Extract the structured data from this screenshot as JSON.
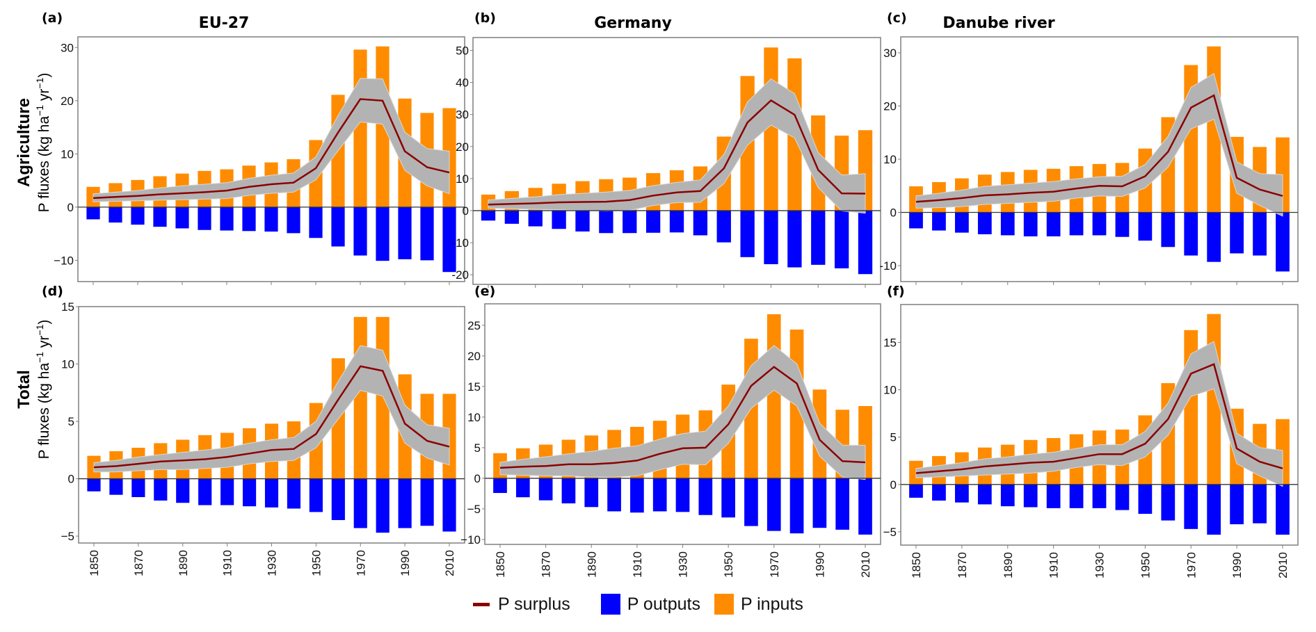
{
  "figure": {
    "columns": [
      "EU-27",
      "Germany",
      "Danube river"
    ],
    "rows": [
      {
        "title": "Agriculture",
        "ylabel_main": "P fluxes (kg ha",
        "ylabel_sup1": "−1",
        "ylabel_mid": " yr",
        "ylabel_sup2": "−1",
        "ylabel_end": ")"
      },
      {
        "title": "Total",
        "ylabel_main": "P fluxes (kg ha",
        "ylabel_sup1": "−1",
        "ylabel_mid": " yr",
        "ylabel_sup2": "−1",
        "ylabel_end": ")"
      }
    ],
    "colors": {
      "inputs": "#ff8c00",
      "outputs": "#0000ff",
      "surplus": "#8b0000",
      "band": "#b3b3b3"
    }
  },
  "legend": {
    "items": [
      {
        "label": "P surplus",
        "kind": "line",
        "color": "#8b0000"
      },
      {
        "label": "P outputs",
        "kind": "box",
        "color": "#0000ff"
      },
      {
        "label": "P inputs",
        "kind": "box",
        "color": "#ff8c00"
      }
    ]
  },
  "chart_data": [
    {
      "panel": "(a)",
      "title": "EU-27",
      "row": "Agriculture",
      "type": "bar",
      "x": [
        1850,
        1860,
        1870,
        1880,
        1890,
        1900,
        1910,
        1920,
        1930,
        1940,
        1950,
        1960,
        1970,
        1980,
        1990,
        2000,
        2010
      ],
      "xticks": [
        1850,
        1870,
        1890,
        1910,
        1930,
        1950,
        1970,
        1990,
        2010
      ],
      "ylim": [
        -14,
        32
      ],
      "yticks": [
        -10,
        0,
        10,
        20,
        30
      ],
      "ytick_labels": [
        "−10",
        "0",
        "10",
        "20",
        "30"
      ],
      "series": [
        {
          "name": "P inputs",
          "values": [
            3.8,
            4.5,
            5.1,
            5.8,
            6.3,
            6.8,
            7.1,
            7.8,
            8.4,
            9.0,
            12.6,
            21.1,
            29.6,
            30.2,
            20.4,
            17.7,
            18.6
          ]
        },
        {
          "name": "P outputs",
          "values": [
            -2.3,
            -2.9,
            -3.3,
            -3.7,
            -4.0,
            -4.3,
            -4.4,
            -4.5,
            -4.6,
            -4.9,
            -5.8,
            -7.4,
            -9.1,
            -10.1,
            -9.8,
            -10.0,
            -12.2
          ]
        },
        {
          "name": "P surplus",
          "values": [
            1.7,
            1.9,
            2.1,
            2.4,
            2.6,
            2.8,
            3.1,
            3.8,
            4.3,
            4.6,
            7.3,
            14.0,
            20.3,
            20.0,
            10.5,
            7.5,
            6.5
          ]
        },
        {
          "name": "P surplus lower",
          "values": [
            1.0,
            1.1,
            1.2,
            1.3,
            1.4,
            1.5,
            1.6,
            2.2,
            2.6,
            2.8,
            5.1,
            10.6,
            16.0,
            15.6,
            6.9,
            4.0,
            2.5
          ]
        },
        {
          "name": "P surplus upper",
          "values": [
            2.5,
            2.8,
            3.1,
            3.6,
            4.0,
            4.3,
            4.6,
            5.4,
            6.0,
            6.4,
            9.4,
            17.2,
            24.2,
            24.1,
            14.1,
            11.0,
            10.5
          ]
        }
      ]
    },
    {
      "panel": "(b)",
      "title": "Germany",
      "row": "Agriculture",
      "type": "bar",
      "x": [
        1850,
        1860,
        1870,
        1880,
        1890,
        1900,
        1910,
        1920,
        1930,
        1940,
        1950,
        1960,
        1970,
        1980,
        1990,
        2000,
        2010
      ],
      "xticks": [
        1850,
        1870,
        1890,
        1910,
        1930,
        1950,
        1970,
        1990,
        2010
      ],
      "ylim": [
        -23,
        54
      ],
      "yticks": [
        -20,
        -10,
        0,
        10,
        20,
        30,
        40,
        50
      ],
      "ytick_labels": [
        "-20",
        "-10",
        "0",
        "10",
        "20",
        "30",
        "40",
        "50"
      ],
      "series": [
        {
          "name": "P inputs",
          "values": [
            5.0,
            6.1,
            7.1,
            8.4,
            9.2,
            9.8,
            10.3,
            11.7,
            12.6,
            13.8,
            23.1,
            42.0,
            50.9,
            47.5,
            29.7,
            23.4,
            25.1
          ]
        },
        {
          "name": "P outputs",
          "values": [
            -3.1,
            -4.1,
            -4.9,
            -5.7,
            -6.5,
            -7.0,
            -7.0,
            -6.9,
            -6.8,
            -7.7,
            -9.9,
            -14.5,
            -16.7,
            -17.7,
            -16.9,
            -18.0,
            -19.8
          ]
        },
        {
          "name": "P surplus",
          "values": [
            1.9,
            2.1,
            2.3,
            2.6,
            2.7,
            2.8,
            3.3,
            4.7,
            5.7,
            6.1,
            13.2,
            27.5,
            34.4,
            29.9,
            12.7,
            5.4,
            5.3
          ]
        },
        {
          "name": "P surplus lower",
          "values": [
            0.8,
            0.6,
            0.4,
            0.3,
            0.1,
            -0.1,
            0.1,
            1.6,
            2.5,
            2.6,
            8.4,
            20.4,
            26.7,
            22.7,
            7.2,
            -0.1,
            -0.8
          ]
        },
        {
          "name": "P surplus upper",
          "values": [
            3.3,
            3.8,
            4.3,
            5.0,
            5.4,
            5.8,
            6.3,
            7.8,
            8.8,
            9.6,
            17.5,
            33.9,
            41.1,
            36.5,
            18.1,
            11.1,
            11.5
          ]
        }
      ]
    },
    {
      "panel": "(c)",
      "title": "Danube river",
      "row": "Agriculture",
      "type": "bar",
      "x": [
        1850,
        1860,
        1870,
        1880,
        1890,
        1900,
        1910,
        1920,
        1930,
        1940,
        1950,
        1960,
        1970,
        1980,
        1990,
        2000,
        2010
      ],
      "xticks": [
        1850,
        1870,
        1890,
        1910,
        1930,
        1950,
        1970,
        1990,
        2010
      ],
      "ylim": [
        -13,
        33
      ],
      "yticks": [
        -10,
        0,
        10,
        20,
        30
      ],
      "ytick_labels": [
        "-10",
        "0",
        "10",
        "20",
        "30"
      ],
      "series": [
        {
          "name": "P inputs",
          "values": [
            4.9,
            5.7,
            6.4,
            7.1,
            7.6,
            8.0,
            8.2,
            8.7,
            9.1,
            9.3,
            12.0,
            17.9,
            27.7,
            31.2,
            14.2,
            12.3,
            14.1
          ]
        },
        {
          "name": "P outputs",
          "values": [
            -3.0,
            -3.4,
            -3.8,
            -4.1,
            -4.3,
            -4.5,
            -4.5,
            -4.3,
            -4.3,
            -4.6,
            -5.3,
            -6.5,
            -8.1,
            -9.3,
            -7.7,
            -8.1,
            -11.1
          ]
        },
        {
          "name": "P surplus",
          "values": [
            2.0,
            2.3,
            2.7,
            3.2,
            3.4,
            3.7,
            3.9,
            4.5,
            5.0,
            4.9,
            6.8,
            11.4,
            19.7,
            22.0,
            6.5,
            4.3,
            3.1
          ]
        },
        {
          "name": "P surplus lower",
          "values": [
            0.8,
            0.9,
            1.1,
            1.5,
            1.7,
            1.9,
            2.1,
            2.7,
            3.1,
            3.0,
            4.6,
            8.5,
            15.7,
            17.5,
            3.6,
            1.3,
            -0.7
          ]
        },
        {
          "name": "P surplus upper",
          "values": [
            3.1,
            3.6,
            4.2,
            4.9,
            5.2,
            5.5,
            5.8,
            6.3,
            6.7,
            6.8,
            9.0,
            14.3,
            23.5,
            26.1,
            9.5,
            7.3,
            7.1
          ]
        }
      ]
    },
    {
      "panel": "(d)",
      "title": "EU-27",
      "row": "Total",
      "type": "bar",
      "x": [
        1850,
        1860,
        1870,
        1880,
        1890,
        1900,
        1910,
        1920,
        1930,
        1940,
        1950,
        1960,
        1970,
        1980,
        1990,
        2000,
        2010
      ],
      "xticks": [
        1850,
        1870,
        1890,
        1910,
        1930,
        1950,
        1970,
        1990,
        2010
      ],
      "ylim": [
        -5.6,
        15
      ],
      "yticks": [
        -5,
        0,
        5,
        10,
        15
      ],
      "ytick_labels": [
        "−5",
        "0",
        "5",
        "10",
        "15"
      ],
      "series": [
        {
          "name": "P inputs",
          "values": [
            2.0,
            2.4,
            2.7,
            3.1,
            3.4,
            3.8,
            4.0,
            4.4,
            4.8,
            5.0,
            6.6,
            10.5,
            14.1,
            14.1,
            9.1,
            7.4,
            7.4
          ]
        },
        {
          "name": "P outputs",
          "values": [
            -1.1,
            -1.4,
            -1.6,
            -1.9,
            -2.1,
            -2.3,
            -2.3,
            -2.4,
            -2.5,
            -2.6,
            -2.9,
            -3.6,
            -4.3,
            -4.7,
            -4.3,
            -4.1,
            -4.6
          ]
        },
        {
          "name": "P surplus",
          "values": [
            1.0,
            1.1,
            1.3,
            1.5,
            1.6,
            1.7,
            1.9,
            2.2,
            2.5,
            2.6,
            3.9,
            6.9,
            9.8,
            9.4,
            4.8,
            3.3,
            2.8
          ]
        },
        {
          "name": "P surplus lower",
          "values": [
            0.6,
            0.6,
            0.7,
            0.8,
            0.8,
            0.9,
            1.0,
            1.3,
            1.5,
            1.6,
            2.7,
            5.2,
            7.7,
            7.2,
            3.1,
            1.8,
            1.2
          ]
        },
        {
          "name": "P surplus upper",
          "values": [
            1.4,
            1.6,
            1.9,
            2.1,
            2.3,
            2.5,
            2.7,
            3.1,
            3.4,
            3.6,
            5.0,
            8.5,
            11.6,
            11.2,
            6.4,
            4.7,
            4.4
          ]
        }
      ]
    },
    {
      "panel": "(e)",
      "title": "Germany",
      "row": "Total",
      "type": "bar",
      "x": [
        1850,
        1860,
        1870,
        1880,
        1890,
        1900,
        1910,
        1920,
        1930,
        1940,
        1950,
        1960,
        1970,
        1980,
        1990,
        2000,
        2010
      ],
      "xticks": [
        1850,
        1870,
        1890,
        1910,
        1930,
        1950,
        1970,
        1990,
        2010
      ],
      "ylim": [
        -10.8,
        28.5
      ],
      "yticks": [
        -10,
        -5,
        0,
        5,
        10,
        15,
        20,
        25
      ],
      "ytick_labels": [
        "−10",
        "−5",
        "0",
        "5",
        "10",
        "15",
        "20",
        "25"
      ],
      "series": [
        {
          "name": "P inputs",
          "values": [
            4.1,
            4.9,
            5.5,
            6.3,
            7.0,
            7.9,
            8.4,
            9.4,
            10.4,
            11.1,
            15.3,
            22.8,
            26.8,
            24.3,
            14.5,
            11.2,
            11.8
          ]
        },
        {
          "name": "P outputs",
          "values": [
            -2.4,
            -3.1,
            -3.6,
            -4.1,
            -4.7,
            -5.4,
            -5.6,
            -5.4,
            -5.5,
            -6.0,
            -6.4,
            -7.8,
            -8.6,
            -9.0,
            -8.1,
            -8.4,
            -9.2
          ]
        },
        {
          "name": "P surplus",
          "values": [
            1.7,
            1.9,
            2.0,
            2.3,
            2.3,
            2.5,
            2.9,
            4.0,
            4.9,
            5.0,
            8.8,
            15.1,
            18.2,
            15.5,
            6.3,
            2.8,
            2.6
          ]
        },
        {
          "name": "P surplus lower",
          "values": [
            0.6,
            0.5,
            0.4,
            0.4,
            0.2,
            0.2,
            0.4,
            1.4,
            2.3,
            2.2,
            5.7,
            11.4,
            14.4,
            11.8,
            3.6,
            0.2,
            -0.2
          ]
        },
        {
          "name": "P surplus upper",
          "values": [
            2.6,
            3.1,
            3.5,
            4.0,
            4.4,
            4.9,
            5.3,
            6.4,
            7.3,
            7.7,
            11.8,
            18.4,
            21.7,
            18.7,
            9.0,
            5.4,
            5.4
          ]
        }
      ]
    },
    {
      "panel": "(f)",
      "title": "Danube river",
      "row": "Total",
      "type": "bar",
      "x": [
        1850,
        1860,
        1870,
        1880,
        1890,
        1900,
        1910,
        1920,
        1930,
        1940,
        1950,
        1960,
        1970,
        1980,
        1990,
        2000,
        2010
      ],
      "xticks": [
        1850,
        1870,
        1890,
        1910,
        1930,
        1950,
        1970,
        1990,
        2010
      ],
      "ylim": [
        -6.4,
        19
      ],
      "yticks": [
        -5,
        0,
        5,
        10,
        15
      ],
      "ytick_labels": [
        "−5",
        "0",
        "5",
        "10",
        "15"
      ],
      "series": [
        {
          "name": "P inputs",
          "values": [
            2.5,
            3.0,
            3.4,
            3.9,
            4.2,
            4.7,
            4.9,
            5.3,
            5.7,
            5.8,
            7.3,
            10.7,
            16.3,
            18.0,
            8.0,
            6.4,
            6.9
          ]
        },
        {
          "name": "P outputs",
          "values": [
            -1.4,
            -1.7,
            -1.9,
            -2.1,
            -2.3,
            -2.4,
            -2.5,
            -2.5,
            -2.5,
            -2.7,
            -3.1,
            -3.8,
            -4.7,
            -5.3,
            -4.2,
            -4.1,
            -5.3
          ]
        },
        {
          "name": "P surplus",
          "values": [
            1.2,
            1.4,
            1.6,
            1.9,
            2.1,
            2.3,
            2.4,
            2.8,
            3.2,
            3.2,
            4.3,
            6.9,
            11.7,
            12.7,
            3.8,
            2.4,
            1.7
          ]
        },
        {
          "name": "P surplus lower",
          "values": [
            0.7,
            0.8,
            0.9,
            1.0,
            1.1,
            1.2,
            1.4,
            1.8,
            2.1,
            2.0,
            2.9,
            5.2,
            9.3,
            10.1,
            2.2,
            0.9,
            -0.2
          ]
        },
        {
          "name": "P surplus upper",
          "values": [
            1.7,
            2.0,
            2.3,
            2.7,
            2.9,
            3.2,
            3.4,
            3.8,
            4.2,
            4.2,
            5.6,
            8.6,
            13.8,
            15.1,
            5.4,
            3.9,
            3.6
          ]
        }
      ]
    }
  ]
}
